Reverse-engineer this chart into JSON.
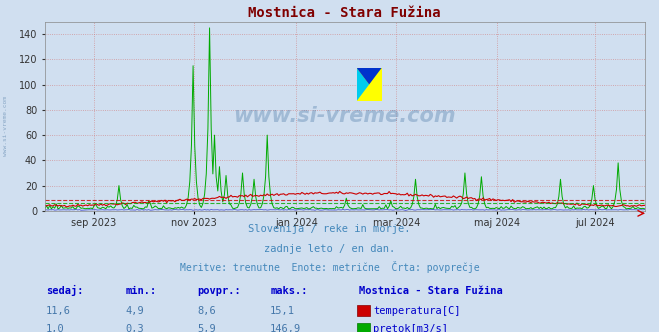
{
  "title": "Mostnica - Stara Fužina",
  "background_color": "#d0dff0",
  "plot_bg_color": "#d0dff0",
  "grid_color": "#d08080",
  "ylim": [
    0,
    150
  ],
  "yticks": [
    0,
    20,
    40,
    60,
    80,
    100,
    120,
    140
  ],
  "xlabel_ticks": [
    "sep 2023",
    "nov 2023",
    "jan 2024",
    "mar 2024",
    "maj 2024",
    "jul 2024"
  ],
  "title_color": "#800000",
  "title_fontsize": 10,
  "temp_color": "#cc0000",
  "flow_color": "#00aa00",
  "level_color": "#0000bb",
  "watermark_text": "www.si-vreme.com",
  "footer_line1": "Slovenija / reke in morje.",
  "footer_line2": "zadnje leto / en dan.",
  "footer_line3": "Meritve: trenutne  Enote: metrične  Črta: povprečje",
  "footer_color": "#4488bb",
  "stat_label_color": "#0000cc",
  "stat_value_color": "#4477aa",
  "legend_title": "Mostnica - Stara Fužina",
  "legend_title_color": "#0000cc",
  "sedaj_temp": "11,6",
  "min_temp": "4,9",
  "povpr_temp": "8,6",
  "maks_temp": "15,1",
  "sedaj_flow": "1,0",
  "min_flow": "0,3",
  "povpr_flow": "5,9",
  "maks_flow": "146,9",
  "temp_avg": 8.6,
  "flow_avg": 5.9
}
